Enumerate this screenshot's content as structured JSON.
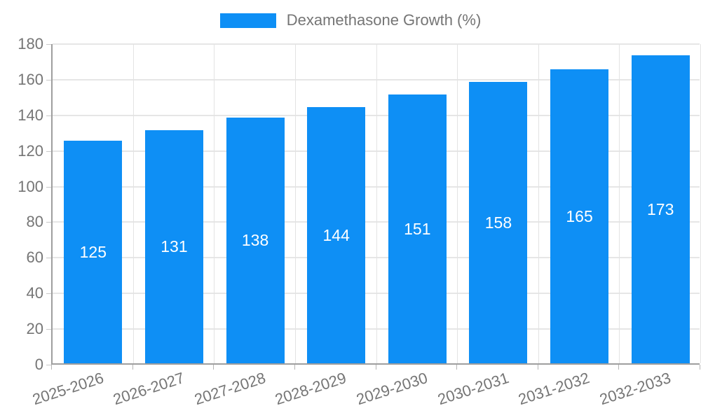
{
  "legend": {
    "label": "Dexamethasone Growth (%)"
  },
  "colors": {
    "bar": "#0e8ff5",
    "bar_value_label": "#ffffff",
    "axis_line": "#9e9e9e",
    "gridline": "#e6e6e6",
    "axis_text": "#757575"
  },
  "chart_data": {
    "type": "bar",
    "title": "",
    "categories": [
      "2025-2026",
      "2026-2027",
      "2027-2028",
      "2028-2029",
      "2029-2030",
      "2030-2031",
      "2031-2032",
      "2032-2033"
    ],
    "values": [
      125,
      131,
      138,
      144,
      151,
      158,
      165,
      173
    ],
    "series_name": "Dexamethasone Growth (%)",
    "xlabel": "",
    "ylabel": "",
    "ylim": [
      0,
      180
    ],
    "yticks": [
      0,
      20,
      40,
      60,
      80,
      100,
      120,
      140,
      160,
      180
    ],
    "grid": true,
    "legend_position": "top",
    "bar_labels_inside": true
  }
}
